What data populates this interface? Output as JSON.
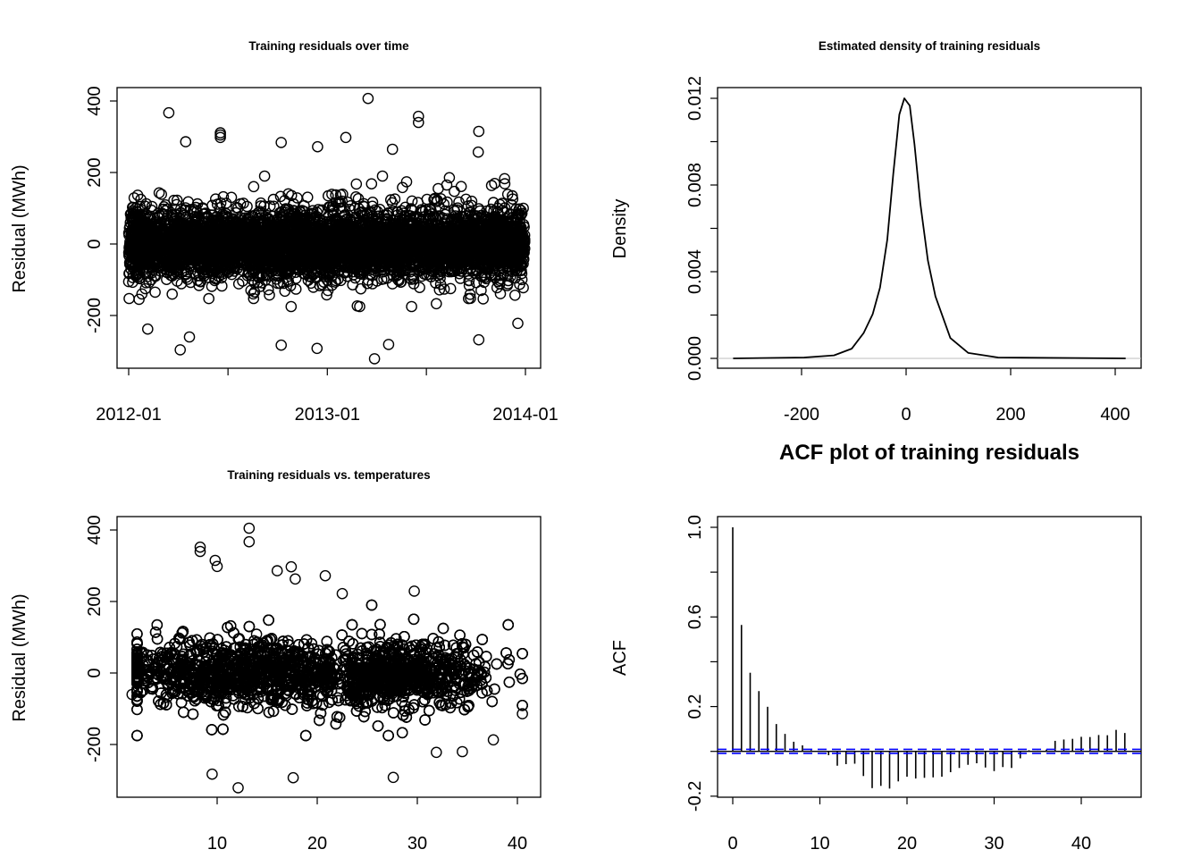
{
  "chart_data": [
    {
      "type": "scatter",
      "title": "Training residuals over time",
      "xlabel": "",
      "ylabel": "Residual (MWh)",
      "x_ticks": [
        "2012-01",
        "2013-01",
        "2014-01"
      ],
      "x_range": [
        "2012-01-01",
        "2014-01-01"
      ],
      "y_ticks": [
        -200,
        0,
        200,
        400
      ],
      "ylim": [
        -320,
        410
      ],
      "marker": "open-circle",
      "cloud": {
        "x_from": "2012-01-01",
        "x_to": "2013-12-31",
        "center": 0,
        "typical_range": [
          -150,
          150
        ]
      },
      "outliers": [
        {
          "x": "2012-03-15",
          "y": 367
        },
        {
          "x": "2012-04-15",
          "y": 286
        },
        {
          "x": "2012-06-18",
          "y": 311
        },
        {
          "x": "2012-06-18",
          "y": 305
        },
        {
          "x": "2012-06-18",
          "y": 298
        },
        {
          "x": "2012-10-08",
          "y": 284
        },
        {
          "x": "2012-12-14",
          "y": 272
        },
        {
          "x": "2013-02-04",
          "y": 298
        },
        {
          "x": "2013-03-17",
          "y": 407
        },
        {
          "x": "2013-06-18",
          "y": 357
        },
        {
          "x": "2013-06-18",
          "y": 340
        },
        {
          "x": "2013-05-01",
          "y": 265
        },
        {
          "x": "2013-10-07",
          "y": 315
        },
        {
          "x": "2013-10-06",
          "y": 257
        },
        {
          "x": "2012-04-05",
          "y": -296
        },
        {
          "x": "2012-12-13",
          "y": -292
        },
        {
          "x": "2013-03-29",
          "y": -321
        },
        {
          "x": "2012-10-08",
          "y": -283
        },
        {
          "x": "2013-04-24",
          "y": -281
        },
        {
          "x": "2013-10-07",
          "y": -268
        },
        {
          "x": "2012-02-05",
          "y": -238
        },
        {
          "x": "2012-04-22",
          "y": -260
        },
        {
          "x": "2013-12-18",
          "y": -222
        }
      ]
    },
    {
      "type": "line",
      "title": "Estimated density of training residuals",
      "xlabel": "",
      "ylabel": "Density",
      "x_ticks": [
        -200,
        0,
        200,
        400
      ],
      "y_ticks": [
        0.0,
        0.002,
        0.004,
        0.006,
        0.008,
        0.01,
        0.012
      ],
      "y_tick_labels": [
        "0.000",
        "0.004",
        "0.008",
        "0.012"
      ],
      "xlim": [
        -360,
        445
      ],
      "ylim": [
        0,
        0.0122
      ],
      "baseline": 0,
      "x": [
        -331,
        -195,
        -138,
        -104,
        -81,
        -64,
        -50,
        -36,
        -24.6,
        -13,
        -3.4,
        7,
        16,
        27.4,
        41.7,
        56,
        84.6,
        119,
        176,
        420
      ],
      "y": [
        0,
        4e-05,
        0.00014,
        0.00045,
        0.00118,
        0.00204,
        0.00327,
        0.00547,
        0.0085,
        0.01125,
        0.012,
        0.01166,
        0.00987,
        0.00712,
        0.00451,
        0.00286,
        0.00094,
        0.00025,
        4e-05,
        0
      ]
    },
    {
      "type": "scatter",
      "title": "Training residuals vs. temperatures",
      "xlabel": "",
      "ylabel": "Residual (MWh)",
      "x_ticks": [
        10,
        20,
        30,
        40
      ],
      "y_ticks": [
        -200,
        0,
        200,
        400
      ],
      "xlim": [
        1,
        41
      ],
      "ylim": [
        -320,
        410
      ],
      "marker": "open-circle",
      "cloud": {
        "x_from": 2,
        "x_to": 40.5,
        "center": 0,
        "typical_range": [
          -150,
          150
        ]
      },
      "outliers": [
        {
          "x": 13.2,
          "y": 405
        },
        {
          "x": 13.2,
          "y": 367
        },
        {
          "x": 8.3,
          "y": 340
        },
        {
          "x": 8.3,
          "y": 352
        },
        {
          "x": 9.8,
          "y": 315
        },
        {
          "x": 10.0,
          "y": 298
        },
        {
          "x": 17.4,
          "y": 297
        },
        {
          "x": 17.8,
          "y": 263
        },
        {
          "x": 16.0,
          "y": 286
        },
        {
          "x": 20.8,
          "y": 272
        },
        {
          "x": 29.7,
          "y": 229
        },
        {
          "x": 22.5,
          "y": 222
        },
        {
          "x": 12.1,
          "y": -321
        },
        {
          "x": 17.6,
          "y": -293
        },
        {
          "x": 27.6,
          "y": -292
        },
        {
          "x": 9.5,
          "y": -283
        },
        {
          "x": 31.9,
          "y": -222
        },
        {
          "x": 34.5,
          "y": -220
        },
        {
          "x": 37.6,
          "y": -187
        },
        {
          "x": 1.5,
          "y": -60
        },
        {
          "x": 40.5,
          "y": -114
        }
      ]
    },
    {
      "type": "bar",
      "title": "ACF plot of training residuals",
      "xlabel": "",
      "ylabel": "ACF",
      "x_ticks": [
        0,
        10,
        20,
        30,
        40
      ],
      "y_ticks": [
        -0.2,
        0.0,
        0.2,
        0.4,
        0.6,
        0.8,
        1.0
      ],
      "y_tick_labels": [
        "-0.2",
        "0.2",
        "0.6",
        "1.0"
      ],
      "xlim": [
        -1.8,
        46.6
      ],
      "ylim": [
        -0.2,
        1.0
      ],
      "confidence_bound": 0.009,
      "confidence_color": "#0000ff",
      "lags": [
        0,
        1,
        2,
        3,
        4,
        5,
        6,
        7,
        8,
        9,
        10,
        11,
        12,
        13,
        14,
        15,
        16,
        17,
        18,
        19,
        20,
        21,
        22,
        23,
        24,
        25,
        26,
        27,
        28,
        29,
        30,
        31,
        32,
        33,
        34,
        35,
        36,
        37,
        38,
        39,
        40,
        41,
        42,
        43,
        44,
        45
      ],
      "values": [
        1.0,
        0.564,
        0.351,
        0.269,
        0.199,
        0.122,
        0.078,
        0.043,
        0.027,
        0.005,
        0.0,
        -0.017,
        -0.064,
        -0.057,
        -0.055,
        -0.11,
        -0.164,
        -0.154,
        -0.166,
        -0.134,
        -0.113,
        -0.121,
        -0.118,
        -0.116,
        -0.113,
        -0.093,
        -0.074,
        -0.06,
        -0.053,
        -0.072,
        -0.088,
        -0.07,
        -0.074,
        -0.031,
        0.005,
        0.003,
        0.008,
        0.047,
        0.053,
        0.056,
        0.065,
        0.064,
        0.073,
        0.072,
        0.096,
        0.082
      ]
    }
  ]
}
